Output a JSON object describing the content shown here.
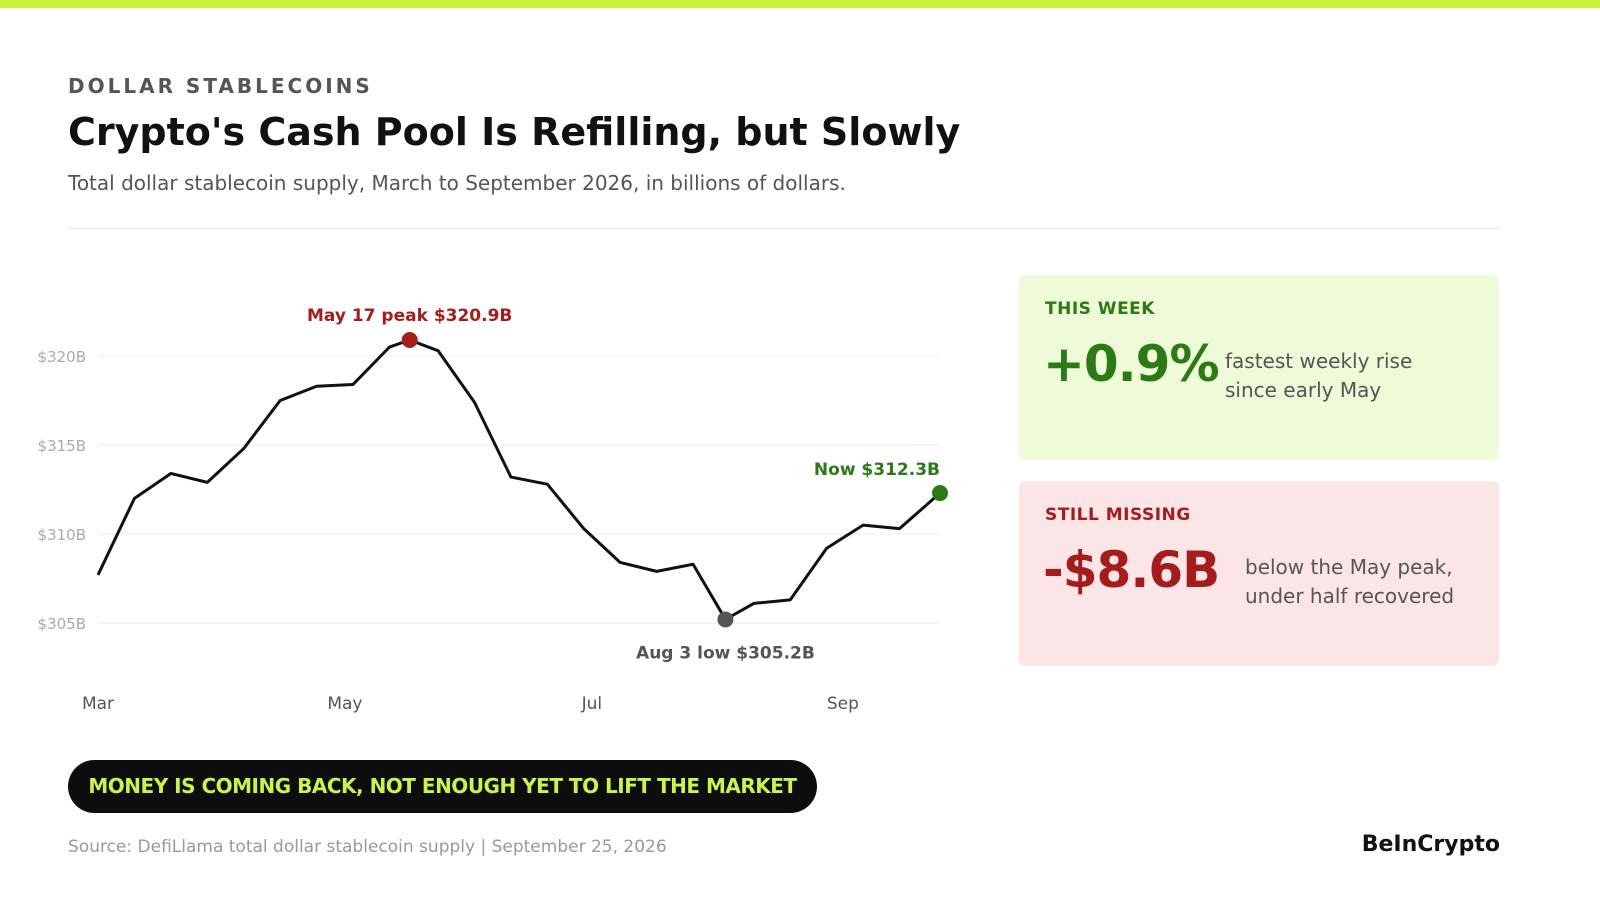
{
  "header": {
    "kicker": "DOLLAR STABLECOINS",
    "title": "Crypto's Cash Pool Is Refilling, but Slowly",
    "subtitle": "Total dollar stablecoin supply, March to September 2026, in billions of dollars."
  },
  "chart_data": {
    "type": "line",
    "x": [
      60,
      69,
      78,
      87,
      96,
      105,
      114,
      123,
      132,
      137,
      144,
      153,
      162,
      171,
      180,
      189,
      198,
      207,
      215,
      222,
      231,
      240,
      249,
      258,
      268
    ],
    "series": [
      {
        "name": "Total dollar stablecoin supply",
        "color": "#111111",
        "values": [
          307.7,
          312.0,
          313.4,
          312.9,
          314.8,
          317.5,
          318.3,
          318.4,
          320.5,
          320.9,
          320.3,
          317.4,
          313.2,
          312.8,
          310.3,
          308.4,
          307.9,
          308.3,
          305.2,
          306.1,
          306.3,
          309.2,
          310.5,
          310.3,
          312.3
        ]
      }
    ],
    "xlim": [
      60,
      268
    ],
    "xticks": [
      {
        "value": 60,
        "label": "Mar"
      },
      {
        "value": 121,
        "label": "May"
      },
      {
        "value": 182,
        "label": "Jul"
      },
      {
        "value": 244,
        "label": "Sep"
      }
    ],
    "ylim": [
      304,
      322
    ],
    "yticks": [
      {
        "value": 305,
        "label": "$305B"
      },
      {
        "value": 310,
        "label": "$310B"
      },
      {
        "value": 315,
        "label": "$315B"
      },
      {
        "value": 320,
        "label": "$320B"
      }
    ],
    "grid": true,
    "annotations": [
      {
        "text": "May 17 peak $320.9B",
        "x": 137,
        "color": "#a51c1c",
        "position": "above"
      },
      {
        "text": "Aug 3 low $305.2B",
        "x": 215,
        "color": "#555555",
        "position": "below"
      },
      {
        "text": "Now $312.3B",
        "x": 268,
        "color": "#2b7a16",
        "position": "above-left"
      }
    ]
  },
  "cards": [
    {
      "label": "THIS WEEK",
      "value": "+0.9%",
      "note": "fastest weekly rise since early May"
    },
    {
      "label": "STILL MISSING",
      "value": "-$8.6B",
      "note": "below the May peak, under half recovered"
    }
  ],
  "banner": "MONEY IS COMING BACK, NOT ENOUGH YET TO LIFT THE MARKET",
  "footer": {
    "source": "Source: DefiLlama total dollar stablecoin supply | September 25, 2026",
    "brand": "BeInCrypto"
  }
}
